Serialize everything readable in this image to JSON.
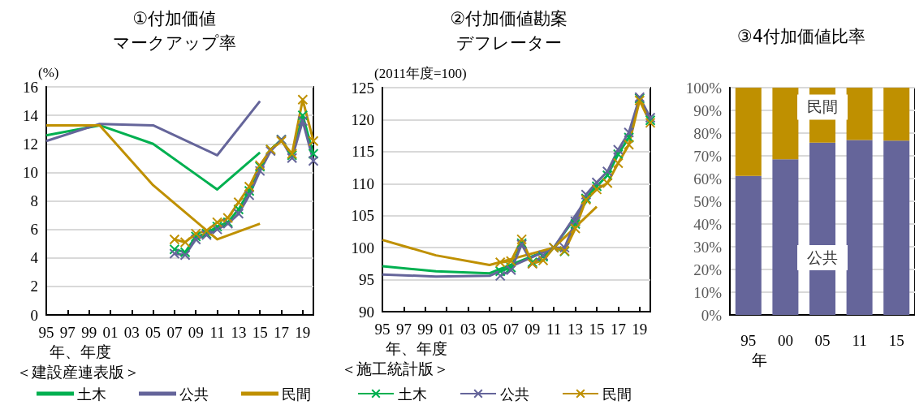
{
  "chart_data": [
    {
      "type": "line",
      "title": "①付加価値",
      "subtitle": "マークアップ率",
      "ylabel": "(%)",
      "xlabel": "年、年度",
      "legend_title": "＜建設産連表版＞",
      "legend": "bottom",
      "grid": "y",
      "line_style": "solid",
      "xlim": [
        1995,
        2020
      ],
      "xticks": [
        {
          "value": 1995,
          "label": "95"
        },
        {
          "value": 1997,
          "label": "97"
        },
        {
          "value": 1999,
          "label": "99"
        },
        {
          "value": 2001,
          "label": "01"
        },
        {
          "value": 2003,
          "label": "03"
        },
        {
          "value": 2005,
          "label": "05"
        },
        {
          "value": 2007,
          "label": "07"
        },
        {
          "value": 2009,
          "label": "09"
        },
        {
          "value": 2011,
          "label": "11"
        },
        {
          "value": 2013,
          "label": "13"
        },
        {
          "value": 2015,
          "label": "15"
        },
        {
          "value": 2017,
          "label": "17"
        },
        {
          "value": 2019,
          "label": "19"
        }
      ],
      "ylim": [
        0,
        16
      ],
      "yticks": [
        0,
        2,
        4,
        6,
        8,
        10,
        12,
        14,
        16
      ],
      "series": [
        {
          "name": "土木",
          "color": "#00b050",
          "marker": "none",
          "x": [
            1995,
            2000,
            2005,
            2011,
            2015
          ],
          "values": [
            12.6,
            13.3,
            12.0,
            8.8,
            11.4
          ]
        },
        {
          "name": "公共",
          "color": "#65659a",
          "marker": "none",
          "x": [
            1995,
            2000,
            2005,
            2011,
            2015
          ],
          "values": [
            12.2,
            13.4,
            13.3,
            11.2,
            15.0
          ]
        },
        {
          "name": "民間",
          "color": "#bf9000",
          "marker": "none",
          "x": [
            1995,
            2000,
            2005,
            2011,
            2015
          ],
          "values": [
            13.3,
            13.3,
            9.1,
            5.3,
            6.4
          ]
        },
        {
          "color": "#00b050",
          "marker": "cross",
          "x": [
            2007,
            2008,
            2009,
            2010,
            2011,
            2012,
            2013,
            2014,
            2015,
            2016,
            2017,
            2018,
            2019,
            2020
          ],
          "values": [
            4.6,
            4.4,
            5.5,
            5.7,
            6.2,
            6.5,
            7.4,
            8.7,
            10.4,
            11.6,
            12.3,
            11.2,
            14.0,
            11.3
          ]
        },
        {
          "color": "#65659a",
          "marker": "cross",
          "x": [
            2007,
            2008,
            2009,
            2010,
            2011,
            2012,
            2013,
            2014,
            2015,
            2016,
            2017,
            2018,
            2019,
            2020
          ],
          "values": [
            4.3,
            4.2,
            5.3,
            5.6,
            6.0,
            6.4,
            7.1,
            8.4,
            10.1,
            11.5,
            12.3,
            11.0,
            13.6,
            10.8
          ]
        },
        {
          "color": "#bf9000",
          "marker": "cross",
          "x": [
            2007,
            2008,
            2009,
            2010,
            2011,
            2012,
            2013,
            2014,
            2015,
            2016,
            2017,
            2018,
            2019,
            2020
          ],
          "values": [
            5.3,
            5.1,
            5.7,
            5.9,
            6.5,
            6.8,
            7.9,
            9.0,
            10.5,
            11.6,
            12.2,
            11.3,
            15.1,
            12.2
          ]
        }
      ]
    },
    {
      "type": "line",
      "title": "②付加価値勘案",
      "subtitle": "デフレーター",
      "ylabel": "(2011年度=100)",
      "xlabel": "年、年度",
      "legend_title": "＜施工統計版＞",
      "legend": "bottom",
      "grid": "y",
      "line_style": "solid",
      "xlim": [
        1995,
        2020
      ],
      "xticks": [
        {
          "value": 1995,
          "label": "95"
        },
        {
          "value": 1997,
          "label": "97"
        },
        {
          "value": 1999,
          "label": "99"
        },
        {
          "value": 2001,
          "label": "01"
        },
        {
          "value": 2003,
          "label": "03"
        },
        {
          "value": 2005,
          "label": "05"
        },
        {
          "value": 2007,
          "label": "07"
        },
        {
          "value": 2009,
          "label": "09"
        },
        {
          "value": 2011,
          "label": "11"
        },
        {
          "value": 2013,
          "label": "13"
        },
        {
          "value": 2015,
          "label": "15"
        },
        {
          "value": 2017,
          "label": "17"
        },
        {
          "value": 2019,
          "label": "19"
        }
      ],
      "ylim": [
        90,
        125
      ],
      "yticks": [
        90,
        95,
        100,
        105,
        110,
        115,
        120,
        125
      ],
      "series": [
        {
          "color": "#00b050",
          "marker": "none",
          "x": [
            1995,
            2000,
            2005,
            2011,
            2015
          ],
          "values": [
            97.1,
            96.3,
            96.0,
            100,
            109.5
          ]
        },
        {
          "color": "#65659a",
          "marker": "none",
          "x": [
            1995,
            2000,
            2005,
            2011,
            2015
          ],
          "values": [
            95.8,
            95.5,
            95.6,
            100,
            110.0
          ]
        },
        {
          "color": "#bf9000",
          "marker": "none",
          "x": [
            1995,
            2000,
            2005,
            2011,
            2015
          ],
          "values": [
            101.2,
            98.8,
            97.3,
            100,
            106.4
          ]
        },
        {
          "name": "土木",
          "color": "#00b050",
          "marker": "cross",
          "x": [
            2006,
            2007,
            2008,
            2009,
            2010,
            2011,
            2012,
            2013,
            2014,
            2015,
            2016,
            2017,
            2018,
            2019,
            2020
          ],
          "values": [
            96.3,
            96.9,
            100.7,
            97.7,
            98.6,
            100,
            99.4,
            103.7,
            107.7,
            109.6,
            111.3,
            114.6,
            117.2,
            123.3,
            119.9
          ]
        },
        {
          "name": "公共",
          "color": "#65659a",
          "marker": "cross",
          "x": [
            2006,
            2007,
            2008,
            2009,
            2010,
            2011,
            2012,
            2013,
            2014,
            2015,
            2016,
            2017,
            2018,
            2019,
            2020
          ],
          "values": [
            95.6,
            96.5,
            100.5,
            97.5,
            98.8,
            100,
            100,
            104.1,
            108.3,
            110.2,
            111.9,
            115.3,
            118.0,
            123.5,
            120.3
          ]
        },
        {
          "name": "民間",
          "color": "#bf9000",
          "marker": "cross",
          "x": [
            2006,
            2007,
            2008,
            2009,
            2010,
            2011,
            2012,
            2013,
            2014,
            2015,
            2016,
            2017,
            2018,
            2019,
            2020
          ],
          "values": [
            97.7,
            97.9,
            101.3,
            97.5,
            98.0,
            100,
            99.5,
            103.0,
            107.5,
            109.1,
            110.1,
            113.2,
            116.1,
            123.0,
            119.5
          ]
        }
      ]
    },
    {
      "type": "bar",
      "title": "③4付加価値比率",
      "xlabel": "年",
      "stacked": true,
      "grid": "y",
      "categories": [
        "95",
        "00",
        "05",
        "11",
        "15"
      ],
      "ylim": [
        0,
        100
      ],
      "yticks": [
        {
          "value": 0,
          "label": "0%"
        },
        {
          "value": 10,
          "label": "10%"
        },
        {
          "value": 20,
          "label": "20%"
        },
        {
          "value": 30,
          "label": "30%"
        },
        {
          "value": 40,
          "label": "40%"
        },
        {
          "value": 50,
          "label": "50%"
        },
        {
          "value": 60,
          "label": "60%"
        },
        {
          "value": 70,
          "label": "70%"
        },
        {
          "value": 80,
          "label": "80%"
        },
        {
          "value": 90,
          "label": "90%"
        },
        {
          "value": 100,
          "label": "100%"
        }
      ],
      "series": [
        {
          "name": "公共",
          "color": "#65659a",
          "values": [
            61.2,
            68.5,
            75.8,
            77.0,
            76.7
          ]
        },
        {
          "name": "民間",
          "color": "#bf9000",
          "values": [
            38.8,
            31.5,
            24.2,
            23.0,
            23.3
          ]
        }
      ]
    }
  ]
}
